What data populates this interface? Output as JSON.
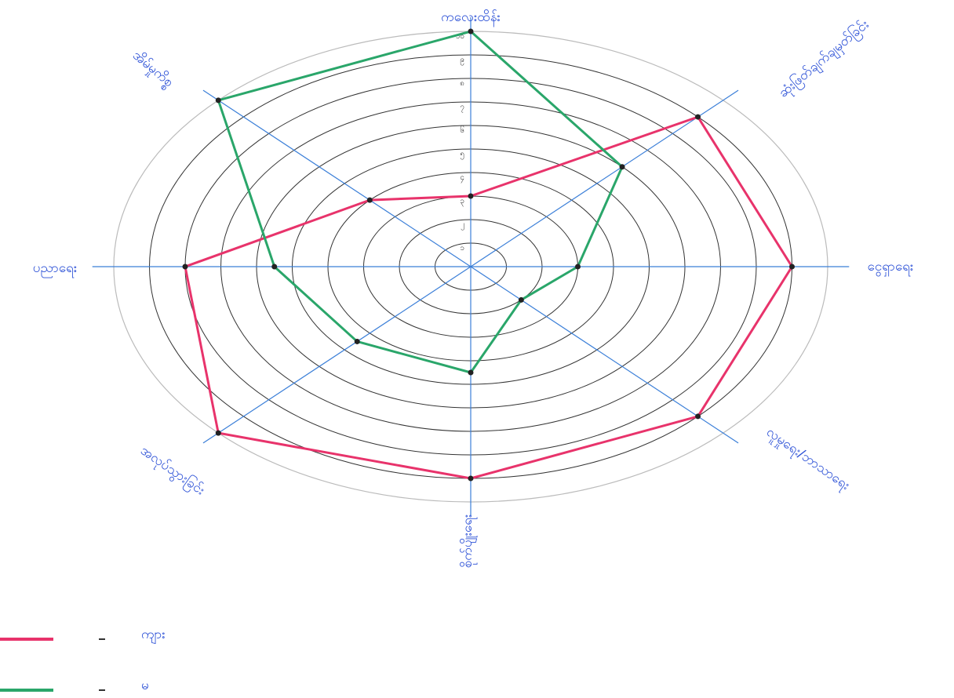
{
  "chart_data": {
    "type": "radar",
    "categories": [
      "ကလေးထိန်း",
      "ဆုံးဖြတ်ချက်ချမှတ်ခြင်း",
      "ငွေရှာရေး",
      "လူမှုရေး/ဘာသာရေး",
      "စိုက်ပျိုးရေး",
      "အလုပ်သွားခြင်း",
      "ပညာရေး",
      "အိမ်မှုကိစ္စ"
    ],
    "series": [
      {
        "name": "ကျား",
        "color": "#e8336b",
        "values": [
          3,
          9,
          9,
          9,
          9,
          10,
          8,
          4
        ]
      },
      {
        "name": "မ",
        "color": "#2aa66a",
        "values": [
          10,
          6,
          3,
          2,
          4.5,
          4.5,
          5.5,
          10
        ]
      }
    ],
    "rlim": [
      0,
      10
    ],
    "rticks": [
      {
        "value": 1,
        "label": "၁"
      },
      {
        "value": 2,
        "label": "၂"
      },
      {
        "value": 3,
        "label": "၃"
      },
      {
        "value": 4,
        "label": "၄"
      },
      {
        "value": 5,
        "label": "၅"
      },
      {
        "value": 6,
        "label": "၆"
      },
      {
        "value": 7,
        "label": "၇"
      },
      {
        "value": 8,
        "label": "၈"
      },
      {
        "value": 9,
        "label": "၉"
      },
      {
        "value": 10,
        "label": "၁၀"
      }
    ],
    "legend": "bottom-left"
  }
}
